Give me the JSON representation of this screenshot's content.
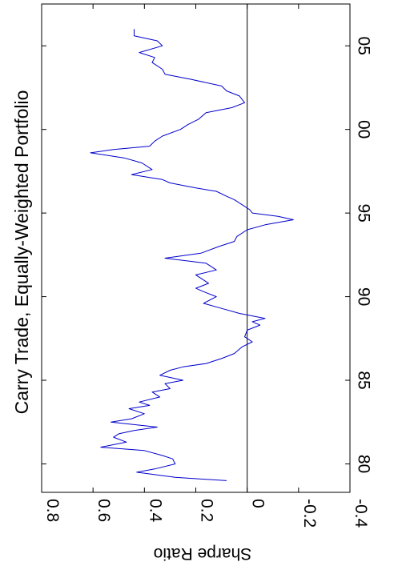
{
  "chart_data": {
    "type": "line",
    "orientation": "rotated-90-clockwise",
    "title": "Carry Trade, Equally-Weighted Portfolio",
    "xlabel": "",
    "ylabel": "Sharpe Ratio",
    "xlim": [
      1978.3,
      2007.5
    ],
    "ylim": [
      -0.4,
      0.8
    ],
    "x_ticks": [
      1980,
      1985,
      1990,
      1995,
      2000,
      2005
    ],
    "x_tick_labels": [
      "80",
      "85",
      "90",
      "95",
      "00",
      "05"
    ],
    "y_ticks": [
      -0.4,
      -0.2,
      0,
      0.2,
      0.4,
      0.6,
      0.8
    ],
    "y_tick_labels": [
      "-0.4",
      "-0.2",
      "0",
      "0.2",
      "0.4",
      "0.6",
      "0.8"
    ],
    "zero_line": true,
    "grid": false,
    "line_color": "#0000cc",
    "series": [
      {
        "x": [
          1979.0,
          1979.2,
          1979.4,
          1979.5,
          1979.7,
          1980.0,
          1980.3,
          1980.5,
          1980.8,
          1981.0,
          1981.3,
          1981.6,
          1981.8,
          1982.0,
          1982.2,
          1982.5,
          1982.7,
          1983.0,
          1983.3,
          1983.5,
          1983.7,
          1984.0,
          1984.3,
          1984.5,
          1984.8,
          1985.0,
          1985.3,
          1985.6,
          1985.8,
          1986.0,
          1986.3,
          1986.6,
          1987.0,
          1987.3,
          1987.6,
          1988.0,
          1988.3,
          1988.5,
          1988.7,
          1989.0,
          1989.3,
          1989.6,
          1990.0,
          1990.3,
          1990.5,
          1990.8,
          1991.0,
          1991.3,
          1991.6,
          1992.0,
          1992.3,
          1992.6,
          1993.0,
          1993.3,
          1993.6,
          1994.0,
          1994.3,
          1994.6,
          1994.8,
          1995.0,
          1995.2,
          1995.5,
          1995.8,
          1996.0,
          1996.3,
          1996.5,
          1996.8,
          1997.0,
          1997.3,
          1997.6,
          1998.0,
          1998.3,
          1998.6,
          1998.8,
          1999.0,
          1999.3,
          1999.6,
          2000.0,
          2000.3,
          2000.6,
          2001.0,
          2001.3,
          2001.6,
          2002.0,
          2002.3,
          2002.6,
          2003.0,
          2003.3,
          2003.6,
          2004.0,
          2004.3,
          2004.6,
          2005.0,
          2005.3,
          2005.6,
          2006.0
        ],
        "values": [
          0.08,
          0.28,
          0.38,
          0.43,
          0.36,
          0.28,
          0.29,
          0.33,
          0.4,
          0.57,
          0.47,
          0.52,
          0.5,
          0.44,
          0.35,
          0.53,
          0.45,
          0.4,
          0.46,
          0.38,
          0.42,
          0.34,
          0.37,
          0.3,
          0.32,
          0.25,
          0.34,
          0.3,
          0.25,
          0.16,
          0.1,
          0.05,
          0.02,
          -0.02,
          0.01,
          0.0,
          -0.05,
          -0.02,
          -0.07,
          0.03,
          0.1,
          0.17,
          0.12,
          0.17,
          0.2,
          0.15,
          0.17,
          0.2,
          0.12,
          0.16,
          0.32,
          0.18,
          0.11,
          0.05,
          0.04,
          0.0,
          -0.07,
          -0.18,
          -0.12,
          -0.02,
          -0.01,
          0.02,
          0.05,
          0.08,
          0.12,
          0.2,
          0.3,
          0.33,
          0.45,
          0.37,
          0.41,
          0.48,
          0.61,
          0.52,
          0.38,
          0.36,
          0.33,
          0.26,
          0.23,
          0.19,
          0.16,
          0.06,
          0.01,
          0.03,
          0.08,
          0.1,
          0.22,
          0.32,
          0.33,
          0.37,
          0.36,
          0.42,
          0.33,
          0.35,
          0.44,
          0.44
        ]
      }
    ]
  }
}
